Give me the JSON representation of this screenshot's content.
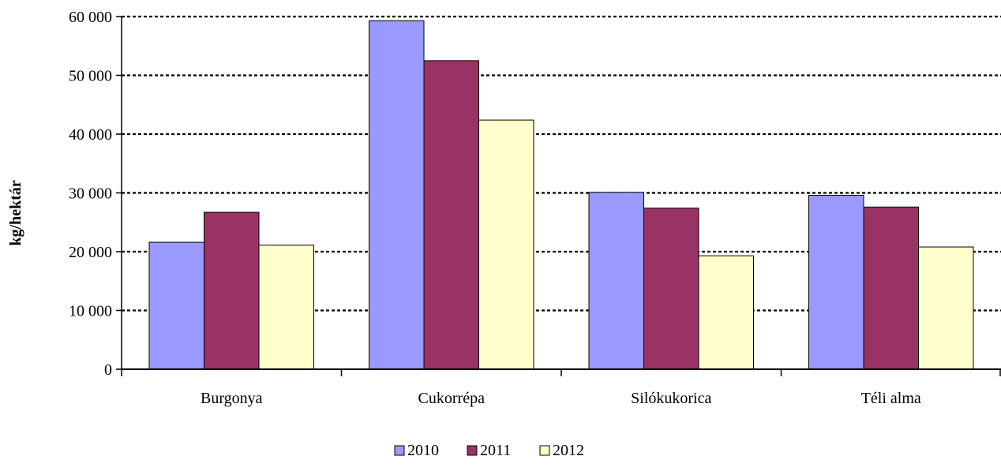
{
  "chart_data": {
    "type": "bar",
    "title": "",
    "xlabel": "",
    "ylabel": "kg/hektár",
    "categories": [
      "Burgonya",
      "Cukorrépa",
      "Silókukorica",
      "Téli alma"
    ],
    "series": [
      {
        "name": "2010",
        "color": "#9999ff",
        "values": [
          21600,
          59300,
          30100,
          29600
        ]
      },
      {
        "name": "2011",
        "color": "#993366",
        "values": [
          26700,
          52500,
          27400,
          27600
        ]
      },
      {
        "name": "2012",
        "color": "#ffffcc",
        "values": [
          21100,
          42400,
          19300,
          20800
        ]
      }
    ],
    "ylim": [
      0,
      60000
    ],
    "yticks": [
      0,
      10000,
      20000,
      30000,
      40000,
      50000,
      60000
    ],
    "ytick_labels": [
      "0",
      "10 000",
      "20 000",
      "30 000",
      "40 000",
      "50 000",
      "60 000"
    ],
    "grid": "horizontal-dotted",
    "legend_position": "bottom"
  }
}
